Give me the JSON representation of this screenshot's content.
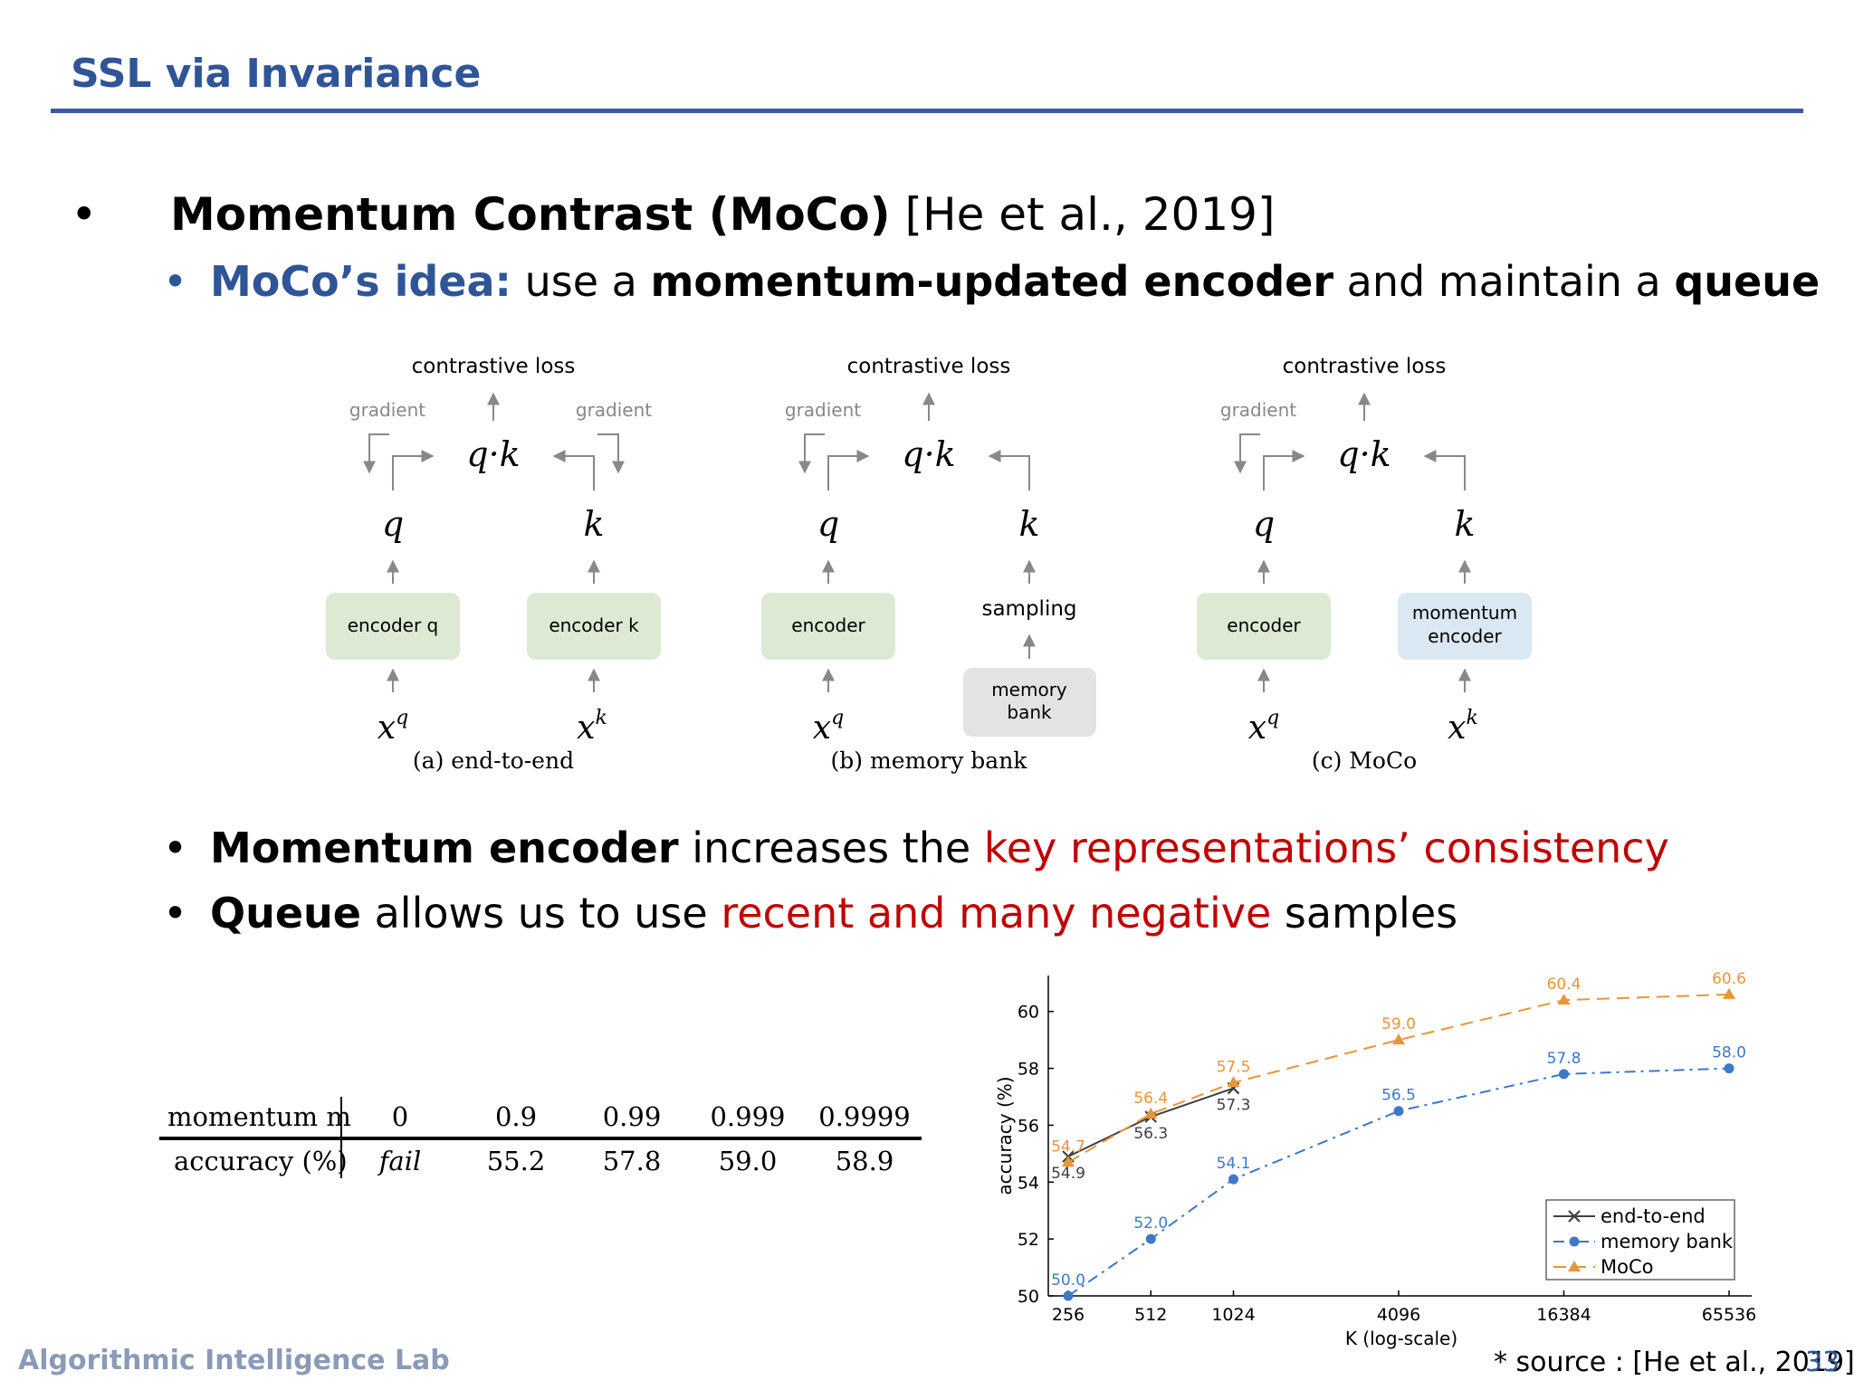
{
  "slide": {
    "title": "SSL via Invariance",
    "bullet1": {
      "bold": "Momentum Contrast (MoCo)",
      "cite": " [He et al., 2019]"
    },
    "bullet1a": {
      "lead": "MoCo’s idea:",
      "t1": " use a ",
      "b1": "momentum-updated encoder",
      "t2": " and maintain a ",
      "b2": "queue"
    },
    "bullet2": {
      "b": "Momentum encoder",
      "t": " increases the ",
      "red": "key representations’ consistency"
    },
    "bullet3": {
      "b": "Queue",
      "t1": " allows us to use ",
      "red": "recent and many negative",
      "t2": " samples"
    },
    "footer": {
      "lab": "Algorithmic Intelligence Lab",
      "source": "* source : [He et al., 2019]",
      "page": "33"
    }
  },
  "diagram": {
    "loss_label": "contrastive loss",
    "gradient_label": "gradient",
    "qk": "q·k",
    "q": "q",
    "k": "k",
    "panels": [
      {
        "left_box": "encoder q",
        "right_box": "encoder k",
        "caption": "(a) end-to-end"
      },
      {
        "left_box": "encoder",
        "sampling": "sampling",
        "memory_bank_1": "memory",
        "memory_bank_2": "bank",
        "caption": "(b) memory bank"
      },
      {
        "left_box": "encoder",
        "right_box_1": "momentum",
        "right_box_2": "encoder",
        "caption": "(c) MoCo"
      }
    ],
    "colors": {
      "green_box": "#dde9d3",
      "blue_box": "#d9e8f3",
      "gray_box": "#e3e3e3",
      "arrow": "#888888"
    }
  },
  "table": {
    "row1_label": "momentum m",
    "row2_label": "accuracy (%)",
    "momentum": [
      "0",
      "0.9",
      "0.99",
      "0.999",
      "0.9999"
    ],
    "accuracy": [
      "fail",
      "55.2",
      "57.8",
      "59.0",
      "58.9"
    ]
  },
  "chart_data": {
    "type": "line",
    "xlabel": "K (log-scale)",
    "ylabel": "accuracy (%)",
    "x_scale": "log",
    "x": [
      256,
      512,
      1024,
      4096,
      16384,
      65536
    ],
    "x_ticks": [
      "256",
      "512",
      "1024",
      "4096",
      "16384",
      "65536"
    ],
    "y_ticks": [
      "50",
      "52",
      "54",
      "56",
      "58",
      "60"
    ],
    "ylim": [
      50,
      61.2
    ],
    "legend_position": "bottom-right",
    "series": [
      {
        "name": "end-to-end",
        "color": "#404040",
        "marker": "x",
        "dash": "solid",
        "x": [
          256,
          512,
          1024
        ],
        "values": [
          54.9,
          56.3,
          57.3
        ]
      },
      {
        "name": "memory bank",
        "color": "#3f78c9",
        "marker": "circle",
        "dash": "dashdot",
        "x": [
          256,
          512,
          1024,
          4096,
          16384,
          65536
        ],
        "values": [
          50.0,
          52.0,
          54.1,
          56.5,
          57.8,
          58.0
        ]
      },
      {
        "name": "MoCo",
        "color": "#e8963a",
        "marker": "triangle",
        "dash": "dashed",
        "x": [
          256,
          512,
          1024,
          4096,
          16384,
          65536
        ],
        "values": [
          54.7,
          56.4,
          57.5,
          59.0,
          60.4,
          60.6
        ]
      }
    ],
    "labels": {
      "end_to_end": [
        "54.9",
        "56.3",
        "57.3"
      ],
      "memory_bank": [
        "50.0",
        "52.0",
        "54.1",
        "56.5",
        "57.8",
        "58.0"
      ],
      "moco": [
        "54.7",
        "56.4",
        "57.5",
        "59.0",
        "60.4",
        "60.6"
      ]
    }
  }
}
